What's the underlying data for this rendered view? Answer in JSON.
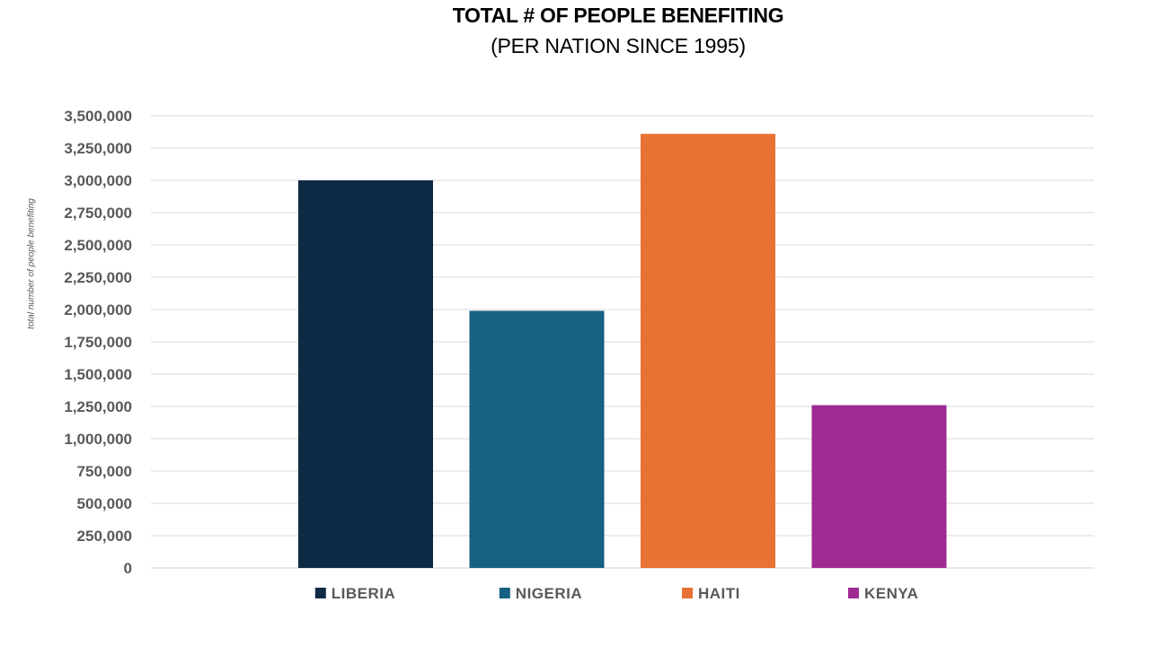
{
  "chart_data": {
    "type": "bar",
    "title": "TOTAL # OF PEOPLE BENEFITING",
    "subtitle": "(PER NATION SINCE 1995)",
    "xlabel": "",
    "ylabel": "total number of people benefiting",
    "categories": [
      "LIBERIA",
      "NIGERIA",
      "HAITI",
      "KENYA"
    ],
    "values": [
      3000000,
      1990000,
      3360000,
      1260000
    ],
    "colors": [
      "#0f2a45",
      "#166082",
      "#e87234",
      "#9e2b92"
    ],
    "ylim": [
      0,
      3500000
    ],
    "yticks": [
      0,
      250000,
      500000,
      750000,
      1000000,
      1250000,
      1500000,
      1750000,
      2000000,
      2250000,
      2500000,
      2750000,
      3000000,
      3250000,
      3500000
    ],
    "ytick_labels": [
      "0",
      "250,000",
      "500,000",
      "750,000",
      "1,000,000",
      "1,250,000",
      "1,500,000",
      "1,750,000",
      "2,000,000",
      "2,250,000",
      "2,500,000",
      "2,750,000",
      "3,000,000",
      "3,250,000",
      "3,500,000"
    ],
    "grid": true,
    "legend": {
      "position": "bottom",
      "entries": [
        "LIBERIA",
        "NIGERIA",
        "HAITI",
        "KENYA"
      ]
    }
  }
}
